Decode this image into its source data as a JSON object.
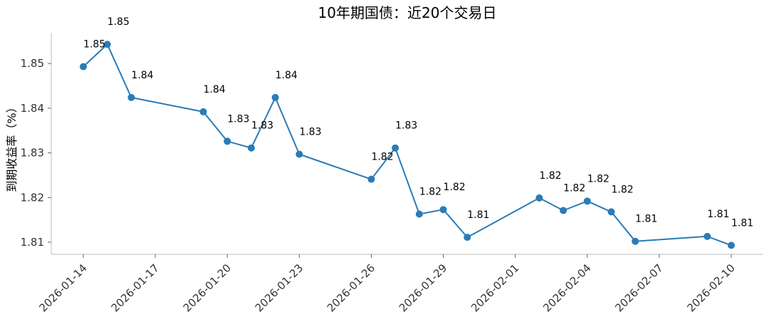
{
  "chart_data": {
    "type": "line",
    "title": "10年期国债：近20个交易日",
    "xlabel": "",
    "ylabel": "到期收益率（%）",
    "ylim": [
      1.807,
      1.857
    ],
    "yticks": [
      1.81,
      1.82,
      1.83,
      1.84,
      1.85
    ],
    "ytick_labels": [
      "1.81",
      "1.82",
      "1.83",
      "1.84",
      "1.85"
    ],
    "xticks": [
      "2026-01-14",
      "2026-01-17",
      "2026-01-20",
      "2026-01-23",
      "2026-01-26",
      "2026-01-29",
      "2026-02-01",
      "2026-02-04",
      "2026-02-07",
      "2026-02-10"
    ],
    "grid": false,
    "color": "#2b7bb6",
    "series": [
      {
        "points": [
          {
            "x": "2026-01-14",
            "y": 1.8493,
            "label": "1.85"
          },
          {
            "x": "2026-01-15",
            "y": 1.8543,
            "label": "1.85"
          },
          {
            "x": "2026-01-16",
            "y": 1.8424,
            "label": "1.84"
          },
          {
            "x": "2026-01-19",
            "y": 1.8392,
            "label": "1.84"
          },
          {
            "x": "2026-01-20",
            "y": 1.8326,
            "label": "1.83"
          },
          {
            "x": "2026-01-21",
            "y": 1.8311,
            "label": "1.83"
          },
          {
            "x": "2026-01-22",
            "y": 1.8424,
            "label": "1.84"
          },
          {
            "x": "2026-01-23",
            "y": 1.8297,
            "label": "1.83"
          },
          {
            "x": "2026-01-26",
            "y": 1.8241,
            "label": "1.82"
          },
          {
            "x": "2026-01-27",
            "y": 1.8311,
            "label": "1.83"
          },
          {
            "x": "2026-01-28",
            "y": 1.8163,
            "label": "1.82"
          },
          {
            "x": "2026-01-29",
            "y": 1.8173,
            "label": "1.82"
          },
          {
            "x": "2026-01-30",
            "y": 1.8111,
            "label": "1.81"
          },
          {
            "x": "2026-02-02",
            "y": 1.8199,
            "label": "1.82"
          },
          {
            "x": "2026-02-03",
            "y": 1.8171,
            "label": "1.82"
          },
          {
            "x": "2026-02-04",
            "y": 1.8192,
            "label": "1.82"
          },
          {
            "x": "2026-02-05",
            "y": 1.8168,
            "label": "1.82"
          },
          {
            "x": "2026-02-06",
            "y": 1.8102,
            "label": "1.81"
          },
          {
            "x": "2026-02-09",
            "y": 1.8113,
            "label": "1.81"
          },
          {
            "x": "2026-02-10",
            "y": 1.8093,
            "label": "1.81"
          }
        ]
      }
    ]
  }
}
